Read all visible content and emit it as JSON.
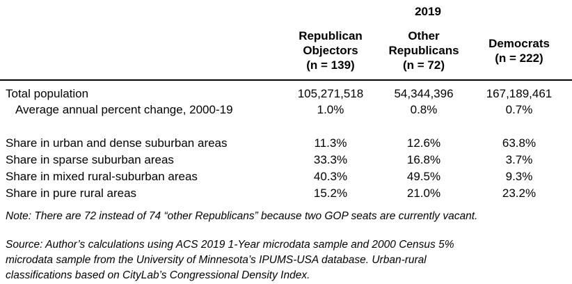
{
  "header": {
    "year": "2019",
    "columns": [
      {
        "lines": [
          "Republican",
          "Objectors",
          "(n = 139)"
        ]
      },
      {
        "lines": [
          "Other",
          "Republicans",
          "(n = 72)"
        ]
      },
      {
        "lines": [
          "Democrats",
          "(n = 222)"
        ]
      }
    ]
  },
  "rows": [
    {
      "label": "Total population",
      "values": [
        "105,271,518",
        "54,344,396",
        "167,189,461"
      ]
    },
    {
      "label": "Average annual percent change, 2000-19",
      "values": [
        "1.0%",
        "0.8%",
        "0.7%"
      ]
    },
    {
      "label": "Share in urban and dense suburban areas",
      "values": [
        "11.3%",
        "12.6%",
        "63.8%"
      ]
    },
    {
      "label": "Share in sparse suburban areas",
      "values": [
        "33.3%",
        "16.8%",
        "3.7%"
      ]
    },
    {
      "label": "Share in mixed rural-suburban areas",
      "values": [
        "40.3%",
        "49.5%",
        "9.3%"
      ]
    },
    {
      "label": "Share in pure rural areas",
      "values": [
        "15.2%",
        "21.0%",
        "23.2%"
      ]
    }
  ],
  "note": "Note: There are 72 instead of 74 “other Republicans” because two GOP seats are currently vacant.",
  "source": [
    "Source: Author’s calculations using ACS 2019 1-Year microdata sample and 2000 Census 5%",
    "microdata sample from the University of Minnesota’s IPUMS-USA database. Urban-rural",
    "classifications based on CityLab’s Congressional Density Index."
  ]
}
